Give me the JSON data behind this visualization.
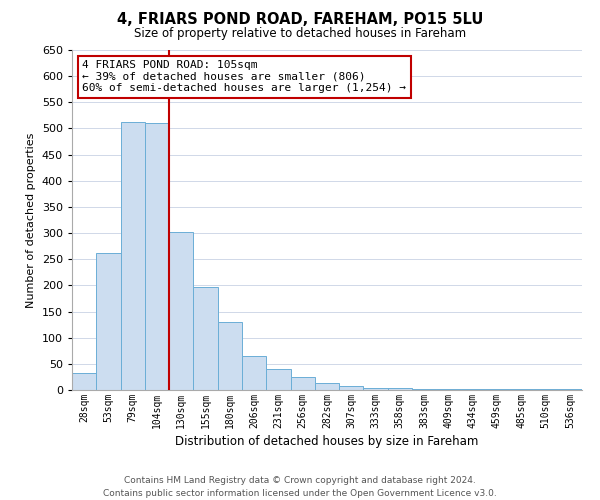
{
  "title": "4, FRIARS POND ROAD, FAREHAM, PO15 5LU",
  "subtitle": "Size of property relative to detached houses in Fareham",
  "xlabel": "Distribution of detached houses by size in Fareham",
  "ylabel": "Number of detached properties",
  "bar_labels": [
    "28sqm",
    "53sqm",
    "79sqm",
    "104sqm",
    "130sqm",
    "155sqm",
    "180sqm",
    "206sqm",
    "231sqm",
    "256sqm",
    "282sqm",
    "307sqm",
    "333sqm",
    "358sqm",
    "383sqm",
    "409sqm",
    "434sqm",
    "459sqm",
    "485sqm",
    "510sqm",
    "536sqm"
  ],
  "bar_values": [
    33,
    262,
    512,
    510,
    302,
    197,
    130,
    65,
    40,
    24,
    14,
    8,
    4,
    3,
    2,
    1,
    1,
    1,
    1,
    1,
    1
  ],
  "bar_color": "#ccddf0",
  "bar_edge_color": "#6baed6",
  "highlight_line_color": "#c00000",
  "ylim": [
    0,
    650
  ],
  "yticks": [
    0,
    50,
    100,
    150,
    200,
    250,
    300,
    350,
    400,
    450,
    500,
    550,
    600,
    650
  ],
  "annotation_text": "4 FRIARS POND ROAD: 105sqm\n← 39% of detached houses are smaller (806)\n60% of semi-detached houses are larger (1,254) →",
  "annotation_box_color": "#ffffff",
  "annotation_box_edge": "#c00000",
  "footer_line1": "Contains HM Land Registry data © Crown copyright and database right 2024.",
  "footer_line2": "Contains public sector information licensed under the Open Government Licence v3.0.",
  "bg_color": "#ffffff",
  "grid_color": "#d0d8e8",
  "title_fontsize": 10.5,
  "subtitle_fontsize": 8.5
}
